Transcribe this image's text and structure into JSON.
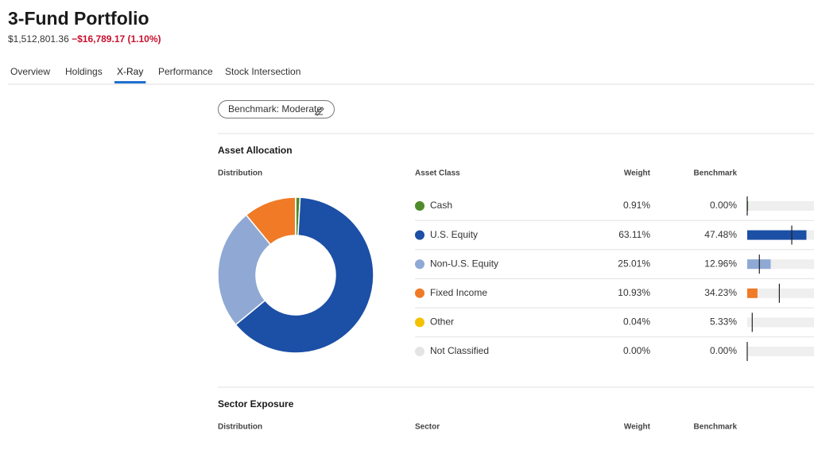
{
  "header": {
    "title": "3-Fund Portfolio",
    "value": "$1,512,801.36",
    "change": "−$16,789.17 (1.10%)"
  },
  "tabs": [
    "Overview",
    "Holdings",
    "X-Ray",
    "Performance",
    "Stock Intersection"
  ],
  "active_tab": 2,
  "benchmark_button": "Benchmark: Moderate",
  "asset_allocation": {
    "title": "Asset Allocation",
    "columns": [
      "Distribution",
      "Asset Class",
      "Weight",
      "Benchmark"
    ],
    "rows": [
      {
        "name": "Cash",
        "color": "#4f8a2b",
        "weight": 0.91,
        "weight_label": "0.91%",
        "benchmark": 0.0,
        "benchmark_label": "0.00%"
      },
      {
        "name": "U.S. Equity",
        "color": "#1c4fa6",
        "weight": 63.11,
        "weight_label": "63.11%",
        "benchmark": 47.48,
        "benchmark_label": "47.48%"
      },
      {
        "name": "Non-U.S. Equity",
        "color": "#8fa9d4",
        "weight": 25.01,
        "weight_label": "25.01%",
        "benchmark": 12.96,
        "benchmark_label": "12.96%"
      },
      {
        "name": "Fixed Income",
        "color": "#f07a26",
        "weight": 10.93,
        "weight_label": "10.93%",
        "benchmark": 34.23,
        "benchmark_label": "34.23%"
      },
      {
        "name": "Other",
        "color": "#f2c200",
        "weight": 0.04,
        "weight_label": "0.04%",
        "benchmark": 5.33,
        "benchmark_label": "5.33%"
      },
      {
        "name": "Not Classified",
        "color": "#e4e4e4",
        "weight": 0.0,
        "weight_label": "0.00%",
        "benchmark": 0.0,
        "benchmark_label": "0.00%"
      }
    ]
  },
  "sector_exposure": {
    "title": "Sector Exposure",
    "columns": [
      "Distribution",
      "Sector",
      "Weight",
      "Benchmark"
    ]
  }
}
